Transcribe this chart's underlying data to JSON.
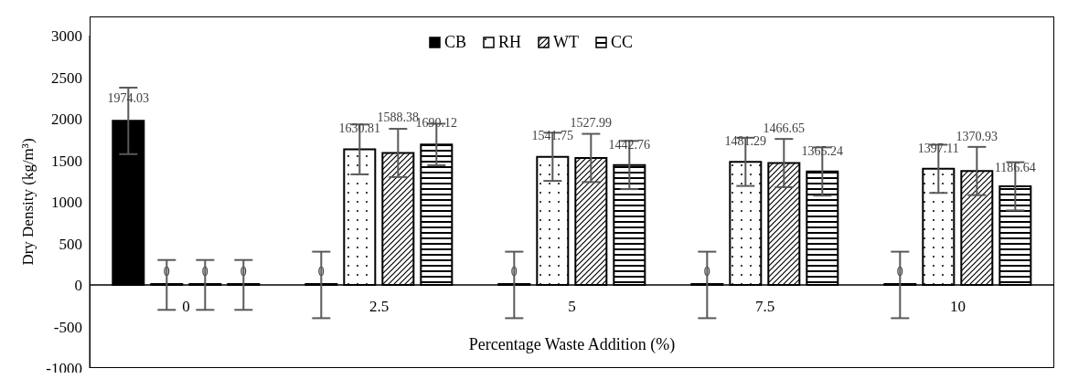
{
  "chart_data": {
    "type": "bar",
    "xlabel": "Percentage Waste Addition (%)",
    "ylabel": "Dry Density (kg/m³)",
    "categories": [
      "0",
      "2.5",
      "5",
      "7.5",
      "10"
    ],
    "series": [
      {
        "name": "CB",
        "color": "#000000",
        "values": [
          1974.03,
          0,
          0,
          0,
          0
        ],
        "errors": [
          400,
          400,
          400,
          400,
          400
        ]
      },
      {
        "name": "RH",
        "color": "#000000",
        "values": [
          0,
          1630.81,
          1541.75,
          1481.29,
          1397.11
        ],
        "errors": [
          300,
          300,
          290,
          290,
          290
        ]
      },
      {
        "name": "WT",
        "color": "#000000",
        "values": [
          0,
          1588.38,
          1527.99,
          1466.65,
          1370.93
        ],
        "errors": [
          300,
          290,
          290,
          290,
          290
        ]
      },
      {
        "name": "CC",
        "color": "#000000",
        "values": [
          0,
          1690.12,
          1442.76,
          1365.24,
          1186.64
        ],
        "errors": [
          300,
          250,
          290,
          290,
          290
        ]
      }
    ],
    "ylim": [
      -1000,
      3000
    ],
    "yticks": [
      -1000,
      -500,
      0,
      500,
      1000,
      1500,
      2000,
      2500,
      3000
    ],
    "data_labels": true,
    "legend": "top",
    "grid": false
  }
}
